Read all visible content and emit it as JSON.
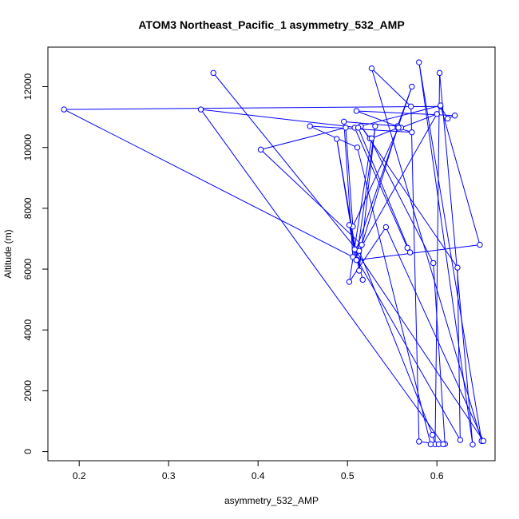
{
  "chart_data": {
    "type": "line",
    "title": "ATOM3 Northeast_Pacific_1 asymmetry_532_AMP",
    "xlabel": "asymmetry_532_AMP",
    "ylabel": "Altitude (m)",
    "xlim": [
      0.165,
      0.665
    ],
    "ylim": [
      -300,
      13300
    ],
    "xticks": [
      0.2,
      0.3,
      0.4,
      0.5,
      0.6
    ],
    "xtick_labels": [
      "0.2",
      "0.3",
      "0.4",
      "0.5",
      "0.6"
    ],
    "yticks": [
      0,
      2000,
      4000,
      6000,
      8000,
      10000,
      12000
    ],
    "ytick_labels": [
      "0",
      "2000",
      "4000",
      "6000",
      "8000",
      "10000",
      "12000"
    ],
    "grid": false,
    "series": [
      {
        "color": "#0000ff",
        "marker": "open-circle",
        "x": [
          0.35,
          0.51,
          0.572,
          0.556,
          0.496,
          0.506,
          0.183,
          0.604,
          0.612,
          0.62,
          0.51,
          0.56,
          0.6,
          0.513,
          0.595,
          0.598,
          0.603,
          0.64,
          0.58,
          0.65,
          0.527,
          0.571,
          0.58,
          0.602,
          0.609,
          0.596,
          0.525,
          0.515,
          0.623,
          0.626,
          0.511,
          0.648,
          0.604,
          0.508,
          0.567,
          0.57,
          0.512,
          0.336,
          0.607,
          0.593,
          0.511,
          0.458,
          0.572,
          0.556,
          0.516,
          0.403,
          0.498,
          0.506,
          0.557,
          0.527,
          0.502,
          0.543,
          0.652,
          0.508,
          0.488,
          0.513,
          0.531,
          0.51,
          0.502,
          0.517
        ],
        "y": [
          12450,
          6650,
          12000,
          10700,
          10850,
          6400,
          11250,
          11350,
          10950,
          11050,
          11200,
          10650,
          11100,
          6600,
          550,
          240,
          12450,
          230,
          12800,
          350,
          12600,
          11350,
          330,
          240,
          250,
          6200,
          10300,
          10700,
          6050,
          380,
          6300,
          6800,
          11380,
          10650,
          6700,
          6550,
          10650,
          11250,
          240,
          240,
          10000,
          10700,
          10500,
          10650,
          6800,
          9930,
          10650,
          7400,
          10650,
          10300,
          5580,
          7380,
          350,
          6650,
          10280,
          5950,
          10700,
          6300,
          7450,
          5650
        ]
      }
    ]
  }
}
